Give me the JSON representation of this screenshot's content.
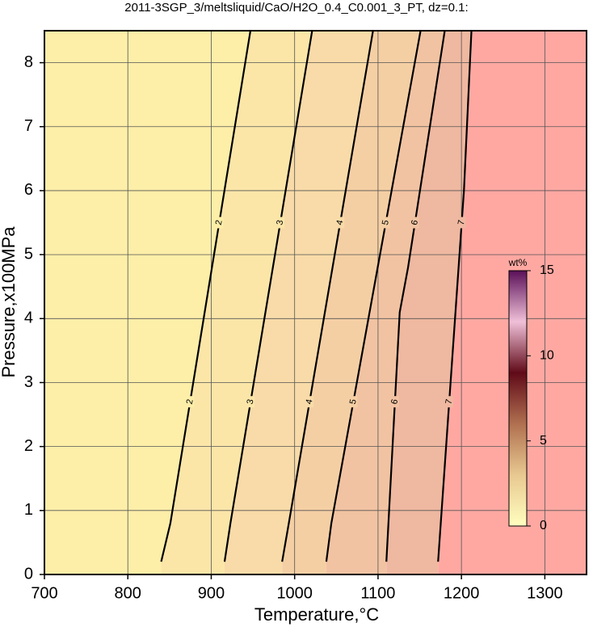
{
  "chart_data": {
    "type": "contour",
    "title": "2011-3SGP_3/meltsliquid/CaO/H2O_0.4_C0.001_3_PT, dz=0.1:",
    "xlabel": "Temperature,°C",
    "ylabel": "Pressure,x100MPa",
    "xlim": [
      700,
      1350
    ],
    "ylim": [
      0,
      8.5
    ],
    "xticks": [
      700,
      800,
      900,
      1000,
      1100,
      1200,
      1300
    ],
    "yticks": [
      0,
      1,
      2,
      3,
      4,
      5,
      6,
      7,
      8
    ],
    "grid": true,
    "band_colors": [
      "#fdeea8",
      "#fbe6a8",
      "#f8dba8",
      "#f5cfa4",
      "#f2c3a2",
      "#efb8a0",
      "#ffa8a2"
    ],
    "contours": [
      {
        "label": "2",
        "x": [
          840,
          851,
          947
        ],
        "y": [
          0.2,
          0.8,
          8.5
        ]
      },
      {
        "label": "3",
        "x": [
          916,
          923,
          1021
        ],
        "y": [
          0.2,
          0.8,
          8.5
        ]
      },
      {
        "label": "4",
        "x": [
          985,
          993,
          1094
        ],
        "y": [
          0.2,
          0.8,
          8.5
        ]
      },
      {
        "label": "5",
        "x": [
          1038,
          1044,
          1151
        ],
        "y": [
          0.2,
          0.8,
          8.5
        ]
      },
      {
        "label": "6",
        "x": [
          1110,
          1126,
          1136,
          1180
        ],
        "y": [
          0.2,
          4.1,
          4.8,
          8.5
        ]
      },
      {
        "label": "7",
        "x": [
          1172,
          1203,
          1212
        ],
        "y": [
          0.2,
          6.0,
          8.5
        ]
      }
    ],
    "colorbar": {
      "label": "wt%",
      "clim": [
        0,
        15
      ],
      "ticks": [
        0,
        5,
        10,
        15
      ],
      "colors": [
        "#ffffc0",
        "#e8c890",
        "#b07050",
        "#600a18",
        "#f0c0d8",
        "#5a1058"
      ]
    }
  }
}
